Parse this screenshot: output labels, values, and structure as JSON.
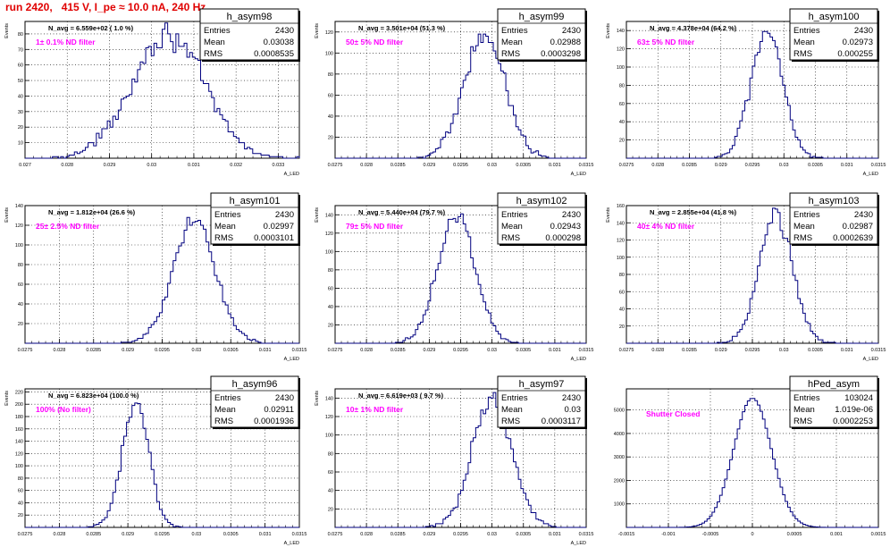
{
  "title": "run 2420,   415 V, I_pe ≈ 10.0 nA, 240 Hz",
  "colors": {
    "histogram": "#00007f",
    "annotation": "#ff00ff",
    "title": "#e00000",
    "grid": "#000000"
  },
  "chart_data": [
    {
      "type": "histogram",
      "name": "h_asym98",
      "xlabel": "A_LED",
      "ylabel": "Events",
      "xlim": [
        0.027,
        0.0335
      ],
      "ylim": [
        0,
        88
      ],
      "xticks": [
        "0.027",
        "0.028",
        "0.029",
        "0.03",
        "0.031",
        "0.032",
        "0.033"
      ],
      "xtick_values": [
        0.027,
        0.028,
        0.029,
        0.03,
        0.031,
        0.032,
        0.033
      ],
      "yticks": [
        "10",
        "20",
        "30",
        "40",
        "50",
        "60",
        "70",
        "80"
      ],
      "ytick_values": [
        10,
        20,
        30,
        40,
        50,
        60,
        70,
        80
      ],
      "navg": "N_avg = 6.559e+02 ( 1.0 %)",
      "filter": "1± 0.1% ND filter",
      "stats": {
        "entries": "2430",
        "mean": "0.03038",
        "rms": "0.0008535"
      },
      "mean_value": 0.03038,
      "rms_value": 0.0008535,
      "peak": 80,
      "entries_value": 2430
    },
    {
      "type": "histogram",
      "name": "h_asym99",
      "xlabel": "A_LED",
      "ylabel": "Events",
      "xlim": [
        0.0275,
        0.0315
      ],
      "ylim": [
        0,
        130
      ],
      "xticks": [
        "0.0275",
        "0.028",
        "0.0285",
        "0.029",
        "0.0295",
        "0.03",
        "0.0305",
        "0.031",
        "0.0315"
      ],
      "xtick_values": [
        0.0275,
        0.028,
        0.0285,
        0.029,
        0.0295,
        0.03,
        0.0305,
        0.031,
        0.0315
      ],
      "yticks": [
        "20",
        "40",
        "60",
        "80",
        "100",
        "120"
      ],
      "ytick_values": [
        20,
        40,
        60,
        80,
        100,
        120
      ],
      "navg": "N_avg = 3.501e+04 (51.3 %)",
      "filter": "50± 5% ND filter",
      "stats": {
        "entries": "2430",
        "mean": "0.02988",
        "rms": "0.0003298"
      },
      "mean_value": 0.02988,
      "rms_value": 0.0003298,
      "peak": 118,
      "entries_value": 2430
    },
    {
      "type": "histogram",
      "name": "h_asym100",
      "xlabel": "A_LED",
      "ylabel": "Events",
      "xlim": [
        0.0275,
        0.0315
      ],
      "ylim": [
        0,
        150
      ],
      "xticks": [
        "0.0275",
        "0.028",
        "0.0285",
        "0.029",
        "0.0295",
        "0.03",
        "0.0305",
        "0.031",
        "0.0315"
      ],
      "xtick_values": [
        0.0275,
        0.028,
        0.0285,
        0.029,
        0.0295,
        0.03,
        0.0305,
        0.031,
        0.0315
      ],
      "yticks": [
        "20",
        "40",
        "60",
        "80",
        "100",
        "120",
        "140"
      ],
      "ytick_values": [
        20,
        40,
        60,
        80,
        100,
        120,
        140
      ],
      "navg": "N_avg = 4.378e+04 (64.2 %)",
      "filter": "63± 5% ND filter",
      "stats": {
        "entries": "2430",
        "mean": "0.02973",
        "rms": "0.000255"
      },
      "mean_value": 0.02973,
      "rms_value": 0.000255,
      "peak": 140,
      "entries_value": 2430
    },
    {
      "type": "histogram",
      "name": "h_asym101",
      "xlabel": "A_LED",
      "ylabel": "Events",
      "xlim": [
        0.0275,
        0.0315
      ],
      "ylim": [
        0,
        140
      ],
      "xticks": [
        "0.0275",
        "0.028",
        "0.0285",
        "0.029",
        "0.0295",
        "0.03",
        "0.0305",
        "0.031",
        "0.0315"
      ],
      "xtick_values": [
        0.0275,
        0.028,
        0.0285,
        0.029,
        0.0295,
        0.03,
        0.0305,
        0.031,
        0.0315
      ],
      "yticks": [
        "20",
        "40",
        "60",
        "80",
        "100",
        "120",
        "140"
      ],
      "ytick_values": [
        20,
        40,
        60,
        80,
        100,
        120,
        140
      ],
      "navg": "N_avg = 1.812e+04 (26.6 %)",
      "filter": "25± 2.5% ND filter",
      "stats": {
        "entries": "2430",
        "mean": "0.02997",
        "rms": "0.0003101"
      },
      "mean_value": 0.02997,
      "rms_value": 0.0003101,
      "peak": 125,
      "entries_value": 2430
    },
    {
      "type": "histogram",
      "name": "h_asym102",
      "xlabel": "A_LED",
      "ylabel": "Events",
      "xlim": [
        0.0275,
        0.0315
      ],
      "ylim": [
        0,
        150
      ],
      "xticks": [
        "0.0275",
        "0.028",
        "0.0285",
        "0.029",
        "0.0295",
        "0.03",
        "0.0305",
        "0.031",
        "0.0315"
      ],
      "xtick_values": [
        0.0275,
        0.028,
        0.0285,
        0.029,
        0.0295,
        0.03,
        0.0305,
        0.031,
        0.0315
      ],
      "yticks": [
        "20",
        "40",
        "60",
        "80",
        "100",
        "120",
        "140"
      ],
      "ytick_values": [
        20,
        40,
        60,
        80,
        100,
        120,
        140
      ],
      "navg": "N_avg = 5.440e+04 (79.7 %)",
      "filter": "79± 5% ND filter",
      "stats": {
        "entries": "2430",
        "mean": "0.02943",
        "rms": "0.000298"
      },
      "mean_value": 0.02943,
      "rms_value": 0.000298,
      "peak": 138,
      "entries_value": 2430
    },
    {
      "type": "histogram",
      "name": "h_asym103",
      "xlabel": "A_LED",
      "ylabel": "Events",
      "xlim": [
        0.0275,
        0.0315
      ],
      "ylim": [
        0,
        160
      ],
      "xticks": [
        "0.0275",
        "0.028",
        "0.0285",
        "0.029",
        "0.0295",
        "0.03",
        "0.0305",
        "0.031",
        "0.0315"
      ],
      "xtick_values": [
        0.0275,
        0.028,
        0.0285,
        0.029,
        0.0295,
        0.03,
        0.0305,
        0.031,
        0.0315
      ],
      "yticks": [
        "20",
        "40",
        "60",
        "80",
        "100",
        "120",
        "140",
        "160"
      ],
      "ytick_values": [
        20,
        40,
        60,
        80,
        100,
        120,
        140,
        160
      ],
      "navg": "N_avg = 2.855e+04 (41.8 %)",
      "filter": "40± 4% ND filter",
      "stats": {
        "entries": "2430",
        "mean": "0.02987",
        "rms": "0.0002639"
      },
      "mean_value": 0.02987,
      "rms_value": 0.0002639,
      "peak": 150,
      "entries_value": 2430
    },
    {
      "type": "histogram",
      "name": "h_asym96",
      "xlabel": "A_LED",
      "ylabel": "Events",
      "xlim": [
        0.0275,
        0.0315
      ],
      "ylim": [
        0,
        225
      ],
      "xticks": [
        "0.0275",
        "0.028",
        "0.0285",
        "0.029",
        "0.0295",
        "0.03",
        "0.0305",
        "0.031",
        "0.0315"
      ],
      "xtick_values": [
        0.0275,
        0.028,
        0.0285,
        0.029,
        0.0295,
        0.03,
        0.0305,
        0.031,
        0.0315
      ],
      "yticks": [
        "20",
        "40",
        "60",
        "80",
        "100",
        "120",
        "140",
        "160",
        "180",
        "200",
        "220"
      ],
      "ytick_values": [
        20,
        40,
        60,
        80,
        100,
        120,
        140,
        160,
        180,
        200,
        220
      ],
      "navg": "N_avg = 6.823e+04 (100.0 %)",
      "filter": "100% (No filter)",
      "stats": {
        "entries": "2430",
        "mean": "0.02911",
        "rms": "0.0001936"
      },
      "mean_value": 0.02911,
      "rms_value": 0.0001936,
      "peak": 205,
      "entries_value": 2430
    },
    {
      "type": "histogram",
      "name": "h_asym97",
      "xlabel": "A_LED",
      "ylabel": "Events",
      "xlim": [
        0.0275,
        0.0315
      ],
      "ylim": [
        0,
        150
      ],
      "xticks": [
        "0.0275",
        "0.028",
        "0.0285",
        "0.029",
        "0.0295",
        "0.03",
        "0.0305",
        "0.031",
        "0.0315"
      ],
      "xtick_values": [
        0.0275,
        0.028,
        0.0285,
        0.029,
        0.0295,
        0.03,
        0.0305,
        0.031,
        0.0315
      ],
      "yticks": [
        "20",
        "40",
        "60",
        "80",
        "100",
        "120",
        "140"
      ],
      "ytick_values": [
        20,
        40,
        60,
        80,
        100,
        120,
        140
      ],
      "navg": "N_avg = 6.619e+03 ( 9.7 %)",
      "filter": "10± 1% ND filter",
      "stats": {
        "entries": "2430",
        "mean": "0.03",
        "rms": "0.0003117"
      },
      "mean_value": 0.03,
      "rms_value": 0.0003117,
      "peak": 140,
      "entries_value": 2430
    },
    {
      "type": "histogram",
      "name": "hPed_asym",
      "xlabel": "",
      "ylabel": "",
      "xlim": [
        -0.0015,
        0.0015
      ],
      "ylim": [
        0,
        5900
      ],
      "xticks": [
        "-0.0015",
        "-0.001",
        "-0.0005",
        "0",
        "0.0005",
        "0.001",
        "0.0015"
      ],
      "xtick_values": [
        -0.0015,
        -0.001,
        -0.0005,
        0,
        0.0005,
        0.001,
        0.0015
      ],
      "yticks": [
        "1000",
        "2000",
        "3000",
        "4000",
        "5000"
      ],
      "ytick_values": [
        1000,
        2000,
        3000,
        4000,
        5000
      ],
      "navg": "",
      "filter": "Shutter Closed",
      "stats": {
        "entries": "103024",
        "mean": "1.019e-06",
        "rms": "0.0002253"
      },
      "mean_value": 1.019e-06,
      "rms_value": 0.0002253,
      "peak": 5500,
      "entries_value": 103024
    }
  ]
}
